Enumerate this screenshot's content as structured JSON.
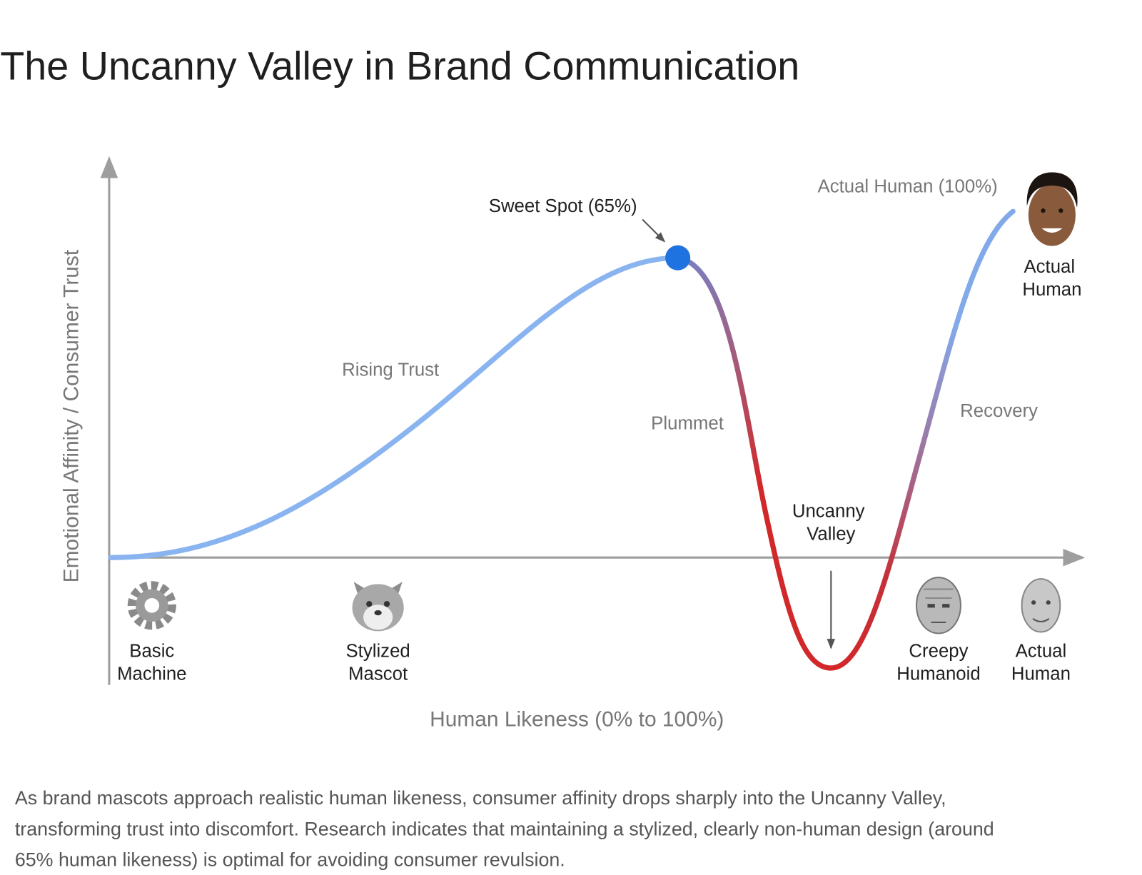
{
  "title": "The Uncanny Valley in Brand Communication",
  "diagram": {
    "y_axis_label": "Emotional Affinity / Consumer Trust",
    "x_axis_label": "Human Likeness (0% to 100%)",
    "annotations": {
      "sweet_spot": "Sweet Spot (65%)",
      "rising_trust": "Rising Trust",
      "plummet": "Plummet",
      "uncanny_valley": [
        "Uncanny",
        "Valley"
      ],
      "recovery": "Recovery",
      "actual_human_top": "Actual Human (100%)",
      "actual_human_face": [
        "Actual",
        "Human"
      ]
    },
    "icons": [
      {
        "label": [
          "Basic",
          "Machine"
        ]
      },
      {
        "label": [
          "Stylized",
          "Mascot"
        ]
      },
      {
        "label": [
          "Creepy",
          "Humanoid"
        ]
      },
      {
        "label": [
          "Actual",
          "Human"
        ]
      }
    ]
  },
  "caption": [
    "As brand mascots approach realistic human likeness, consumer affinity drops sharply into the Uncanny Valley,",
    "transforming trust into discomfort. Research indicates that maintaining a stylized, clearly non-human design (around",
    "65% human likeness) is optimal for avoiding consumer revulsion."
  ]
}
